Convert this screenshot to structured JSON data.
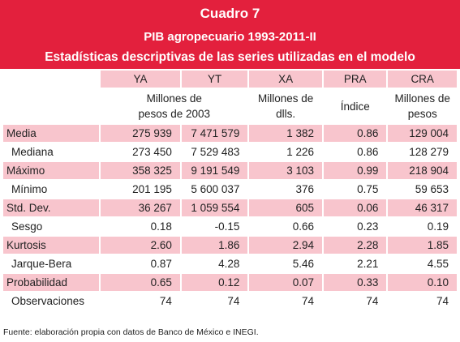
{
  "header": {
    "title": "Cuadro 7",
    "subtitle": "PIB agropecuario 1993-2011-II",
    "description": "Estadísticas descriptivas de las series utilizadas en el modelo"
  },
  "table": {
    "columns": [
      "YA",
      "YT",
      "XA",
      "PRA",
      "CRA"
    ],
    "units": [
      "Millones de\npesos de 2003",
      "Millones de\ndlls.",
      "Índice",
      "Millones de\npesos"
    ],
    "rows": [
      [
        "Media",
        "275 939",
        "7 471 579",
        "1 382",
        "0.86",
        "129 004"
      ],
      [
        "Mediana",
        "273 450",
        "7 529 483",
        "1 226",
        "0.86",
        "128 279"
      ],
      [
        "Máximo",
        "358 325",
        "9 191 549",
        "3 103",
        "0.99",
        "218 904"
      ],
      [
        "Mínimo",
        "201 195",
        "5 600 037",
        "376",
        "0.75",
        "59 653"
      ],
      [
        "Std. Dev.",
        "36 267",
        "1 059 554",
        "605",
        "0.06",
        "46 317"
      ],
      [
        "Sesgo",
        "0.18",
        "-0.15",
        "0.66",
        "0.23",
        "0.19"
      ],
      [
        "Kurtosis",
        "2.60",
        "1.86",
        "2.94",
        "2.28",
        "1.85"
      ],
      [
        "Jarque-Bera",
        "0.87",
        "4.28",
        "5.46",
        "2.21",
        "4.55"
      ],
      [
        "Probabilidad",
        "0.65",
        "0.12",
        "0.07",
        "0.33",
        "0.10"
      ],
      [
        "Observaciones",
        "74",
        "74",
        "74",
        "74",
        "74"
      ]
    ]
  },
  "footer": "Fuente: elaboración propia con datos de Banco de México e INEGI."
}
